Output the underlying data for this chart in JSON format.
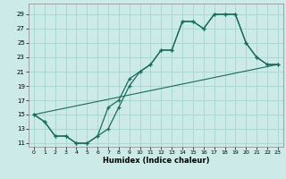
{
  "xlabel": "Humidex (Indice chaleur)",
  "bg_color": "#cceae7",
  "grid_color": "#aad4cf",
  "line_color": "#1a6b5e",
  "xlim": [
    -0.5,
    23.5
  ],
  "ylim": [
    10.5,
    30.5
  ],
  "xticks": [
    0,
    1,
    2,
    3,
    4,
    5,
    6,
    7,
    8,
    9,
    10,
    11,
    12,
    13,
    14,
    15,
    16,
    17,
    18,
    19,
    20,
    21,
    22,
    23
  ],
  "yticks": [
    11,
    13,
    15,
    17,
    19,
    21,
    23,
    25,
    27,
    29
  ],
  "line1_x": [
    0,
    1,
    2,
    3,
    4,
    5,
    6,
    7,
    8,
    9,
    10,
    11,
    12,
    13,
    14,
    15,
    16,
    17,
    18,
    19,
    20,
    21,
    22,
    23
  ],
  "line1_y": [
    15,
    14,
    12,
    12,
    11,
    11,
    12,
    16,
    17,
    20,
    21,
    22,
    24,
    24,
    28,
    28,
    27,
    29,
    29,
    29,
    25,
    23,
    22,
    22
  ],
  "line2_x": [
    0,
    1,
    2,
    3,
    4,
    5,
    6,
    7,
    8,
    9,
    10,
    11,
    12,
    13,
    14,
    15,
    16,
    17,
    18,
    19,
    20,
    21,
    22,
    23
  ],
  "line2_y": [
    15,
    14,
    12,
    12,
    11,
    11,
    12,
    13,
    16,
    19,
    21,
    22,
    24,
    24,
    28,
    28,
    27,
    29,
    29,
    29,
    25,
    23,
    22,
    22
  ],
  "line3_x": [
    0,
    23
  ],
  "line3_y": [
    15,
    22
  ]
}
